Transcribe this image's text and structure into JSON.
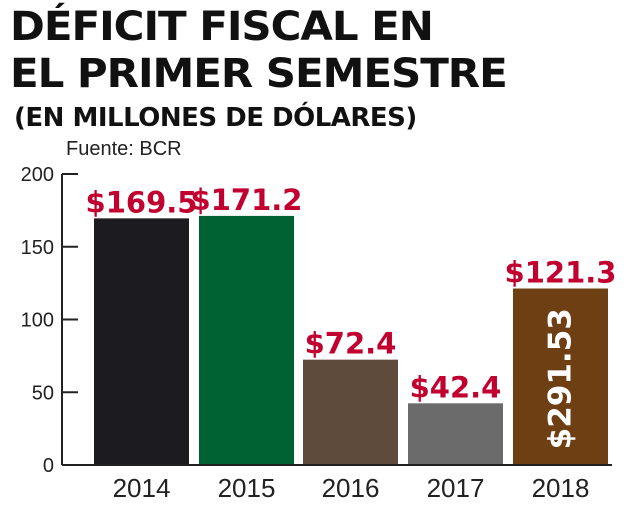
{
  "header": {
    "title_line1": "DÉFICIT FISCAL EN",
    "title_line2": "EL PRIMER SEMESTRE",
    "subtitle": "(EN MILLONES DE DÓLARES)",
    "source": "Fuente: BCR"
  },
  "chart_data": {
    "type": "bar",
    "title": "DÉFICIT FISCAL EN EL PRIMER SEMESTRE",
    "subtitle": "(EN MILLONES DE DÓLARES)",
    "source": "Fuente: BCR",
    "categories": [
      "2014",
      "2015",
      "2016",
      "2017",
      "2018"
    ],
    "values": [
      169.5,
      171.2,
      72.4,
      42.4,
      121.3
    ],
    "data_labels": [
      "$169.5",
      "$171.2",
      "$72.4",
      "$42.4",
      "$121.3"
    ],
    "bar_colors": [
      "#1c1b1f",
      "#006233",
      "#5e4b3c",
      "#6b6b6b",
      "#6e3f13"
    ],
    "annotations": [
      {
        "category": "2018",
        "text": "$291.53",
        "orientation": "vertical"
      }
    ],
    "yticks": [
      0,
      50,
      100,
      150,
      200
    ],
    "ylim": [
      0,
      200
    ],
    "grid": false,
    "legend": "none",
    "label_color": "#c2002f"
  }
}
